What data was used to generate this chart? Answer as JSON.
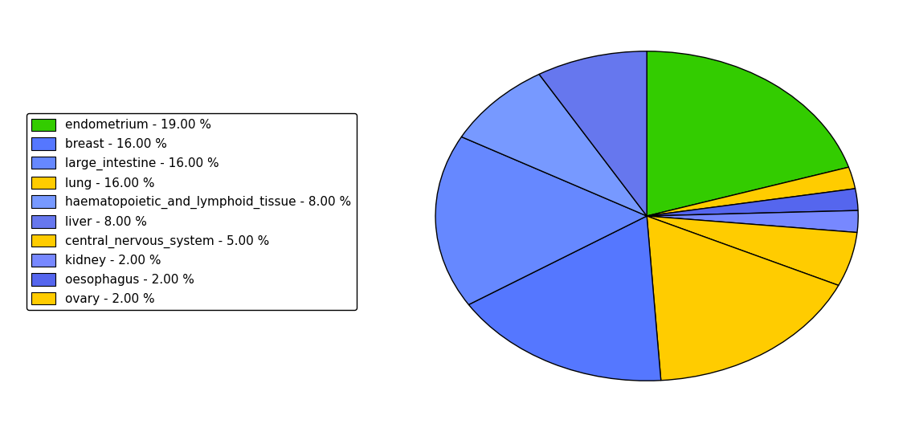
{
  "labels": [
    "endometrium",
    "breast",
    "large_intestine",
    "lung",
    "haematopoietic_and_lymphoid_tissue",
    "liver",
    "central_nervous_system",
    "kidney",
    "oesophagus",
    "ovary"
  ],
  "values": [
    19,
    16,
    16,
    16,
    8,
    8,
    5,
    2,
    2,
    2
  ],
  "colors": [
    "#33cc00",
    "#5577ff",
    "#6688ff",
    "#ffcc00",
    "#7799ff",
    "#6677ee",
    "#ffcc00",
    "#7788ff",
    "#5566ee",
    "#ffcc00"
  ],
  "legend_labels": [
    "endometrium - 19.00 %",
    "breast - 16.00 %",
    "large_intestine - 16.00 %",
    "lung - 16.00 %",
    "haematopoietic_and_lymphoid_tissue - 8.00 %",
    "liver - 8.00 %",
    "central_nervous_system - 5.00 %",
    "kidney - 2.00 %",
    "oesophagus - 2.00 %",
    "ovary - 2.00 %"
  ],
  "background_color": "#ffffff",
  "legend_fontsize": 11,
  "figsize": [
    11.34,
    5.38
  ]
}
